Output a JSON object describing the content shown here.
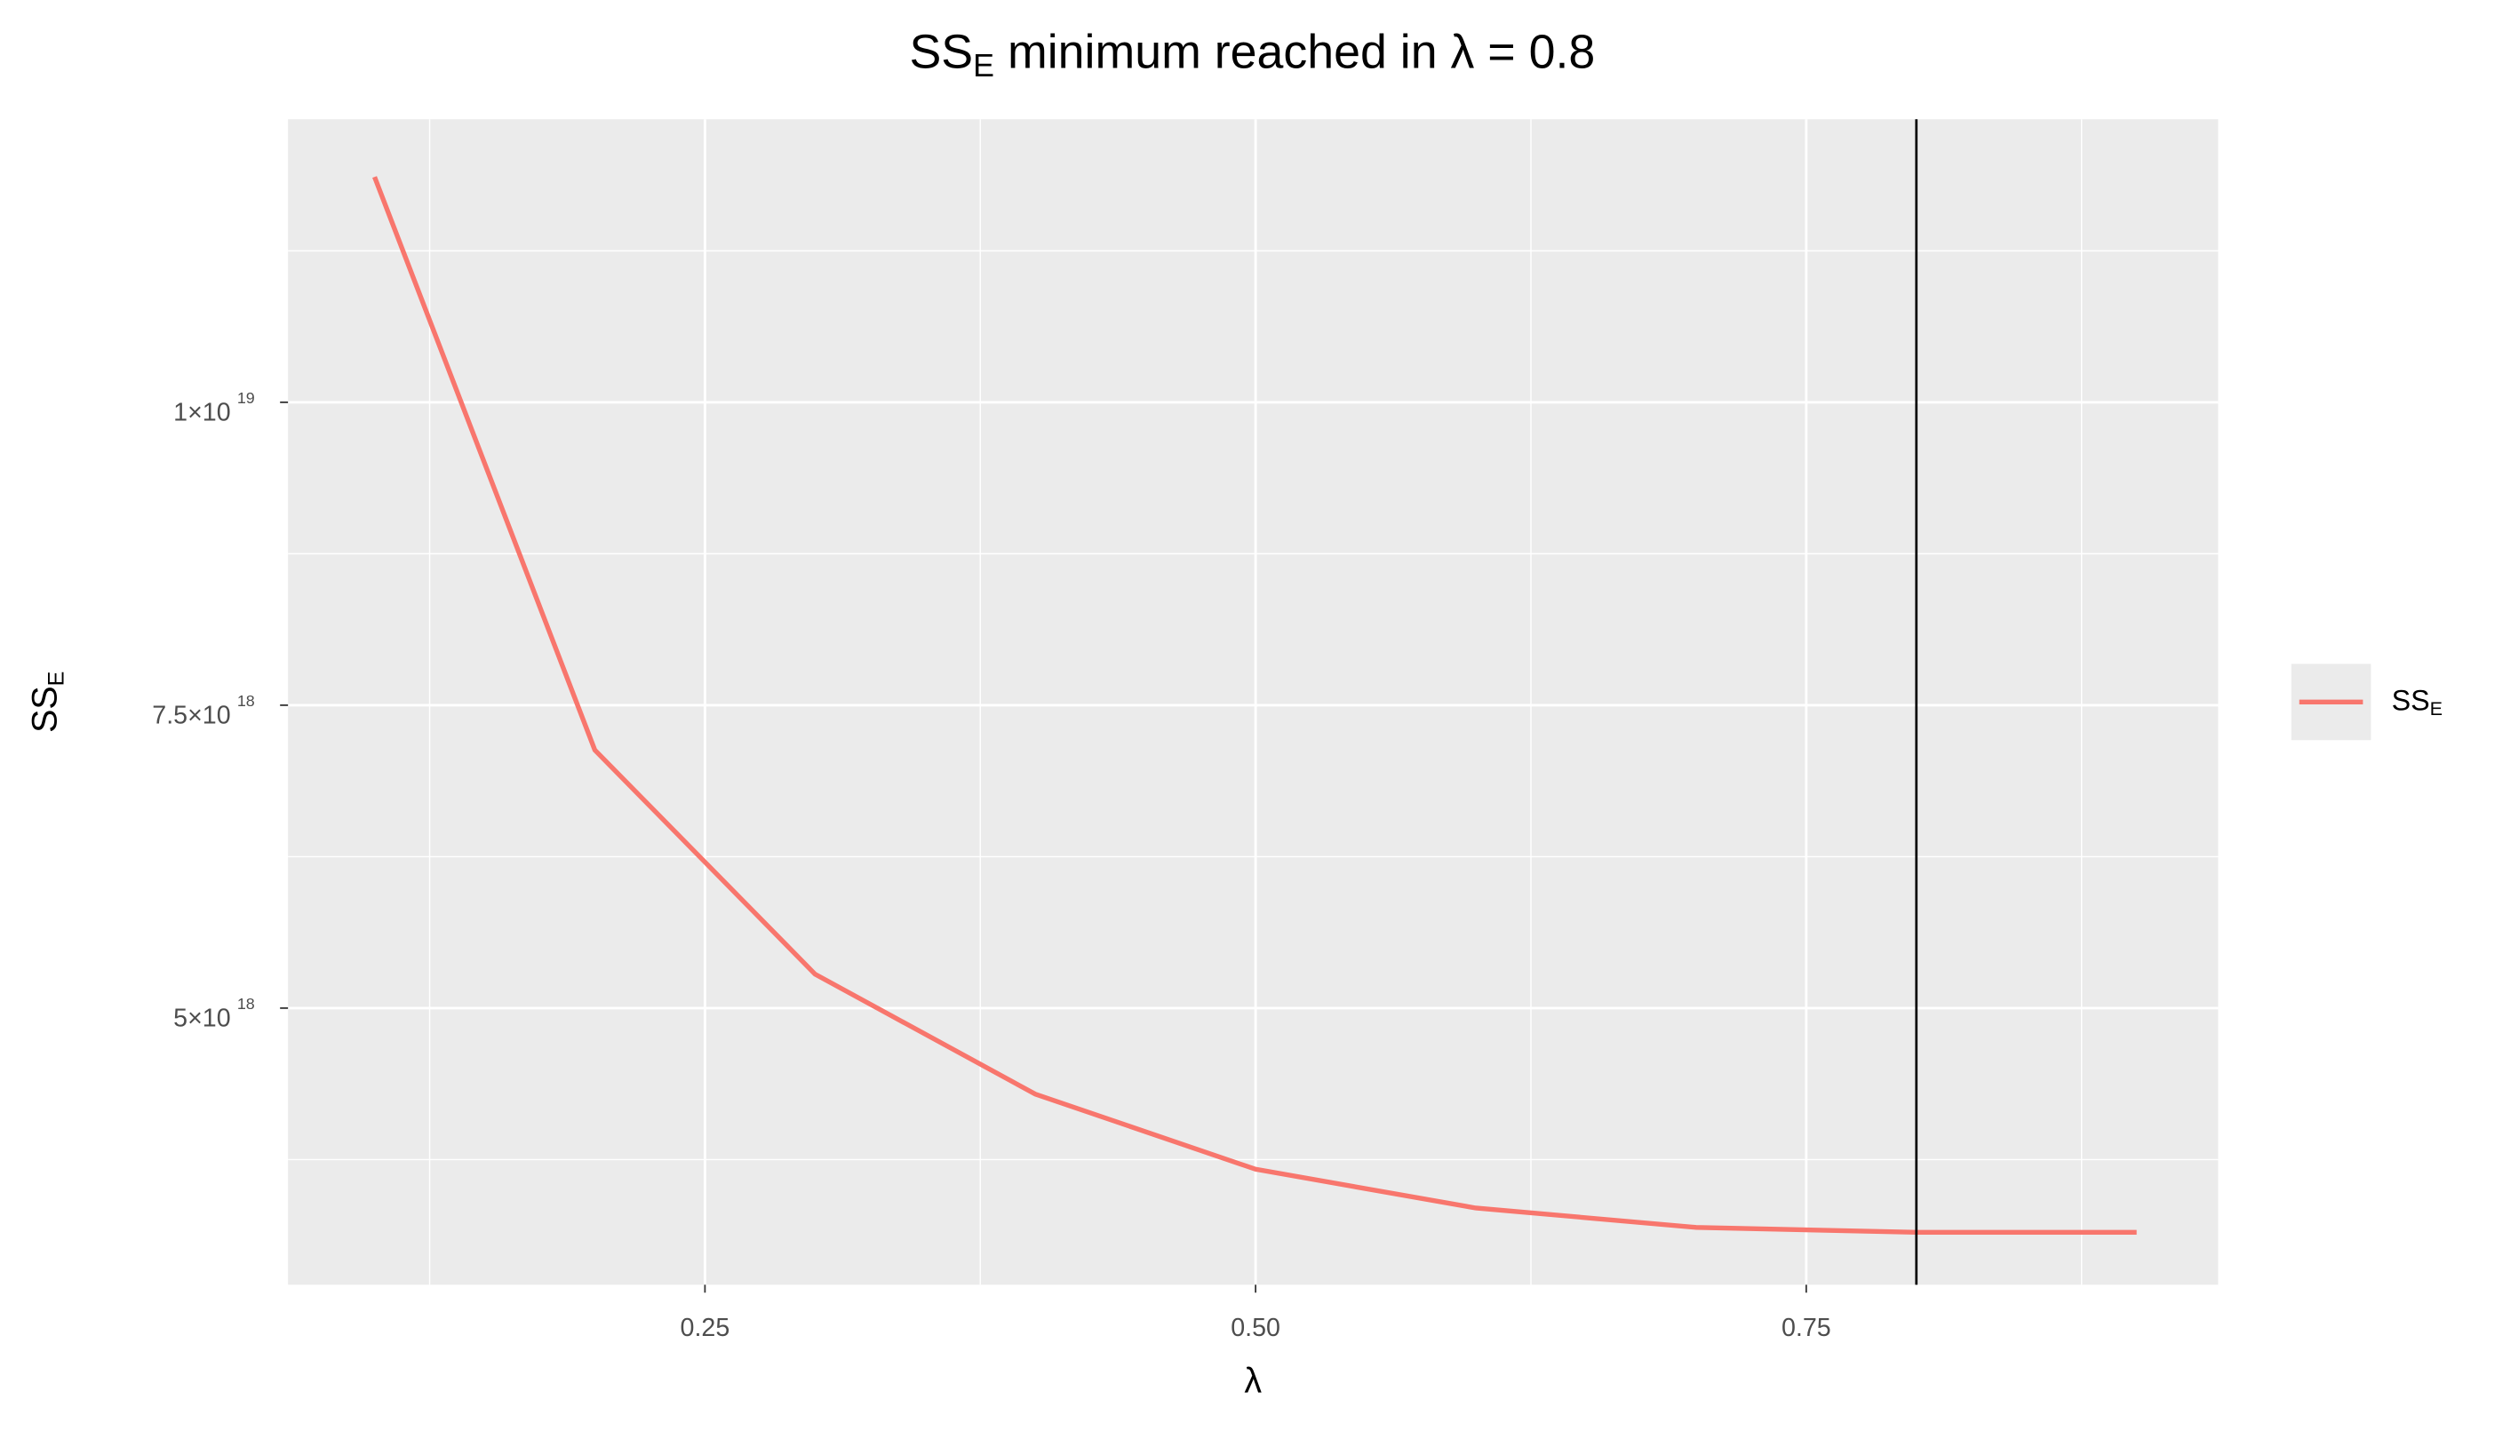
{
  "chart_data": {
    "type": "line",
    "title": {
      "base": "SS",
      "sub": "E",
      "rest": " minimum reached in λ = 0.8"
    },
    "xlabel": "λ",
    "ylabel": {
      "base": "SS",
      "sub": "E"
    },
    "x": [
      0.1,
      0.2,
      0.3,
      0.4,
      0.5,
      0.6,
      0.7,
      0.8,
      0.9
    ],
    "series": [
      {
        "name": "SS",
        "name_sub": "E",
        "color": "#F8766D",
        "values": [
          1.186e+19,
          7.13e+18,
          5.28e+18,
          4.29e+18,
          3.67e+18,
          3.35e+18,
          3.19e+18,
          3.15e+18,
          3.15e+18
        ]
      }
    ],
    "xlim": [
      0.0607,
      0.937
    ],
    "ylim": [
      2.717e+18,
      1.2336e+19
    ],
    "xticks": [
      0.25,
      {
        "value": 0.5,
        "label": "0.50"
      },
      0.75
    ],
    "yticks": [
      {
        "value": 5e+18,
        "label": "5×10",
        "exponent": "18"
      },
      {
        "value": 7.5e+18,
        "label": "7.5×10",
        "exponent": "18"
      },
      {
        "value": 1e+19,
        "label": "1×10",
        "exponent": "19"
      }
    ],
    "x_minor_breaks": [
      0.125,
      0.375,
      0.625,
      0.875
    ],
    "y_minor_breaks": [
      3.75e+18,
      6.25e+18,
      8.75e+18,
      1.125e+19
    ],
    "vline": 0.8,
    "vline_color": "#000000",
    "panel_color": "#EBEBEB",
    "grid": true,
    "legend": "right"
  }
}
